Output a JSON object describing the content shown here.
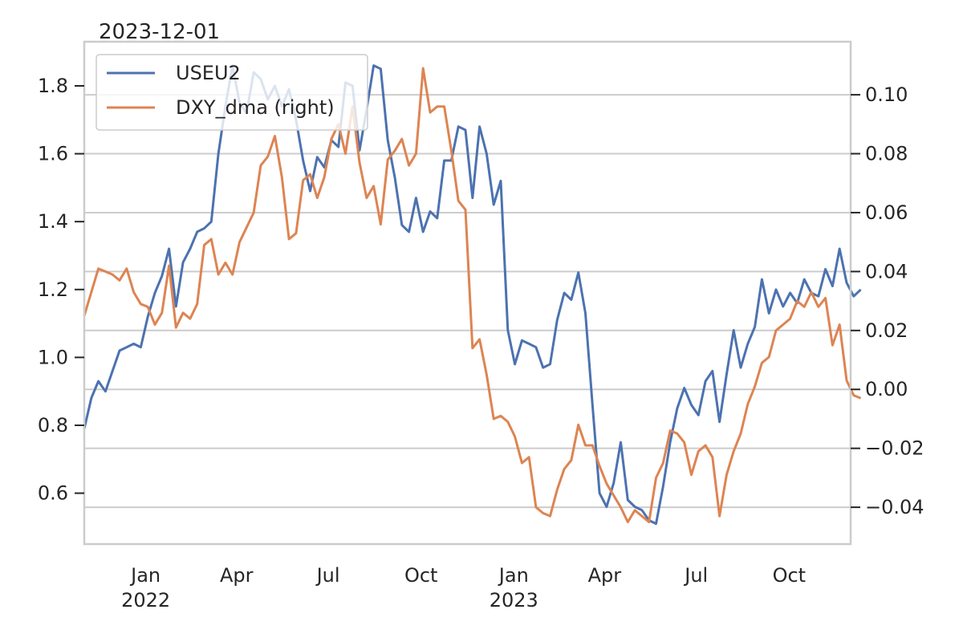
{
  "chart_data": {
    "type": "line",
    "title": "2023-12-01",
    "x_ticks": [
      {
        "date": "2022-01-01",
        "label": "Jan",
        "sublabel": "2022"
      },
      {
        "date": "2022-04-01",
        "label": "Apr",
        "sublabel": ""
      },
      {
        "date": "2022-07-01",
        "label": "Jul",
        "sublabel": ""
      },
      {
        "date": "2022-10-01",
        "label": "Oct",
        "sublabel": ""
      },
      {
        "date": "2023-01-01",
        "label": "Jan",
        "sublabel": "2023"
      },
      {
        "date": "2023-04-01",
        "label": "Apr",
        "sublabel": ""
      },
      {
        "date": "2023-07-01",
        "label": "Jul",
        "sublabel": ""
      },
      {
        "date": "2023-10-01",
        "label": "Oct",
        "sublabel": ""
      }
    ],
    "xlim": [
      "2021-11-01",
      "2023-12-01"
    ],
    "ylim_left": [
      0.45,
      1.93
    ],
    "ylim_right": [
      -0.0525,
      0.118
    ],
    "left_ticks": [
      {
        "value": 0.6,
        "label": "0.6"
      },
      {
        "value": 0.8,
        "label": "0.8"
      },
      {
        "value": 1.0,
        "label": "1.0"
      },
      {
        "value": 1.2,
        "label": "1.2"
      },
      {
        "value": 1.4,
        "label": "1.4"
      },
      {
        "value": 1.6,
        "label": "1.6"
      },
      {
        "value": 1.8,
        "label": "1.8"
      }
    ],
    "right_ticks": [
      {
        "value": -0.04,
        "label": "−0.04"
      },
      {
        "value": -0.02,
        "label": "−0.02"
      },
      {
        "value": 0.0,
        "label": "0.00"
      },
      {
        "value": 0.02,
        "label": "0.02"
      },
      {
        "value": 0.04,
        "label": "0.04"
      },
      {
        "value": 0.06,
        "label": "0.06"
      },
      {
        "value": 0.08,
        "label": "0.08"
      },
      {
        "value": 0.1,
        "label": "0.10"
      }
    ],
    "grid": "horizontal (right axis)",
    "legend_position": "top-left",
    "series": [
      {
        "name": "USEU2",
        "axis": "left",
        "color": "#4c72b0",
        "points": [
          [
            "2021-11-01",
            0.79
          ],
          [
            "2021-11-08",
            0.88
          ],
          [
            "2021-11-15",
            0.93
          ],
          [
            "2021-11-22",
            0.9
          ],
          [
            "2021-11-29",
            0.96
          ],
          [
            "2021-12-06",
            1.02
          ],
          [
            "2021-12-13",
            1.03
          ],
          [
            "2021-12-20",
            1.04
          ],
          [
            "2021-12-27",
            1.03
          ],
          [
            "2022-01-03",
            1.12
          ],
          [
            "2022-01-10",
            1.19
          ],
          [
            "2022-01-17",
            1.24
          ],
          [
            "2022-01-24",
            1.32
          ],
          [
            "2022-01-31",
            1.15
          ],
          [
            "2022-02-07",
            1.28
          ],
          [
            "2022-02-14",
            1.32
          ],
          [
            "2022-02-21",
            1.37
          ],
          [
            "2022-02-28",
            1.38
          ],
          [
            "2022-03-07",
            1.4
          ],
          [
            "2022-03-14",
            1.6
          ],
          [
            "2022-03-21",
            1.74
          ],
          [
            "2022-03-28",
            1.86
          ],
          [
            "2022-04-04",
            1.75
          ],
          [
            "2022-04-11",
            1.72
          ],
          [
            "2022-04-18",
            1.84
          ],
          [
            "2022-04-25",
            1.82
          ],
          [
            "2022-05-02",
            1.76
          ],
          [
            "2022-05-09",
            1.8
          ],
          [
            "2022-05-16",
            1.74
          ],
          [
            "2022-05-23",
            1.79
          ],
          [
            "2022-05-30",
            1.7
          ],
          [
            "2022-06-06",
            1.58
          ],
          [
            "2022-06-13",
            1.49
          ],
          [
            "2022-06-20",
            1.59
          ],
          [
            "2022-06-27",
            1.56
          ],
          [
            "2022-07-04",
            1.64
          ],
          [
            "2022-07-11",
            1.62
          ],
          [
            "2022-07-18",
            1.81
          ],
          [
            "2022-07-25",
            1.8
          ],
          [
            "2022-08-01",
            1.61
          ],
          [
            "2022-08-08",
            1.73
          ],
          [
            "2022-08-15",
            1.86
          ],
          [
            "2022-08-22",
            1.85
          ],
          [
            "2022-08-29",
            1.64
          ],
          [
            "2022-09-05",
            1.53
          ],
          [
            "2022-09-12",
            1.39
          ],
          [
            "2022-09-19",
            1.37
          ],
          [
            "2022-09-26",
            1.47
          ],
          [
            "2022-10-03",
            1.37
          ],
          [
            "2022-10-10",
            1.43
          ],
          [
            "2022-10-17",
            1.41
          ],
          [
            "2022-10-24",
            1.58
          ],
          [
            "2022-10-31",
            1.58
          ],
          [
            "2022-11-07",
            1.68
          ],
          [
            "2022-11-14",
            1.67
          ],
          [
            "2022-11-21",
            1.47
          ],
          [
            "2022-11-28",
            1.68
          ],
          [
            "2022-12-05",
            1.6
          ],
          [
            "2022-12-12",
            1.45
          ],
          [
            "2022-12-19",
            1.52
          ],
          [
            "2022-12-26",
            1.08
          ],
          [
            "2023-01-02",
            0.98
          ],
          [
            "2023-01-09",
            1.05
          ],
          [
            "2023-01-16",
            1.04
          ],
          [
            "2023-01-23",
            1.03
          ],
          [
            "2023-01-30",
            0.97
          ],
          [
            "2023-02-06",
            0.98
          ],
          [
            "2023-02-13",
            1.11
          ],
          [
            "2023-02-20",
            1.19
          ],
          [
            "2023-02-27",
            1.17
          ],
          [
            "2023-03-06",
            1.25
          ],
          [
            "2023-03-13",
            1.13
          ],
          [
            "2023-03-20",
            0.86
          ],
          [
            "2023-03-27",
            0.6
          ],
          [
            "2023-04-03",
            0.56
          ],
          [
            "2023-04-10",
            0.63
          ],
          [
            "2023-04-17",
            0.75
          ],
          [
            "2023-04-24",
            0.58
          ],
          [
            "2023-05-01",
            0.56
          ],
          [
            "2023-05-08",
            0.55
          ],
          [
            "2023-05-15",
            0.52
          ],
          [
            "2023-05-22",
            0.51
          ],
          [
            "2023-05-29",
            0.62
          ],
          [
            "2023-06-05",
            0.75
          ],
          [
            "2023-06-12",
            0.85
          ],
          [
            "2023-06-19",
            0.91
          ],
          [
            "2023-06-26",
            0.86
          ],
          [
            "2023-07-03",
            0.83
          ],
          [
            "2023-07-10",
            0.93
          ],
          [
            "2023-07-17",
            0.96
          ],
          [
            "2023-07-24",
            0.81
          ],
          [
            "2023-07-31",
            0.95
          ],
          [
            "2023-08-07",
            1.08
          ],
          [
            "2023-08-14",
            0.97
          ],
          [
            "2023-08-21",
            1.04
          ],
          [
            "2023-08-28",
            1.09
          ],
          [
            "2023-09-04",
            1.23
          ],
          [
            "2023-09-11",
            1.13
          ],
          [
            "2023-09-18",
            1.2
          ],
          [
            "2023-09-25",
            1.15
          ],
          [
            "2023-10-02",
            1.19
          ],
          [
            "2023-10-09",
            1.16
          ],
          [
            "2023-10-16",
            1.23
          ],
          [
            "2023-10-23",
            1.19
          ],
          [
            "2023-10-30",
            1.18
          ],
          [
            "2023-11-06",
            1.26
          ],
          [
            "2023-11-13",
            1.21
          ],
          [
            "2023-11-20",
            1.32
          ],
          [
            "2023-11-27",
            1.22
          ],
          [
            "2023-12-04",
            1.18
          ],
          [
            "2023-12-11",
            1.2
          ]
        ]
      },
      {
        "name": "DXY_dma (right)",
        "axis": "right",
        "color": "#dd8452",
        "points": [
          [
            "2021-11-01",
            0.025
          ],
          [
            "2021-11-08",
            0.033
          ],
          [
            "2021-11-15",
            0.041
          ],
          [
            "2021-11-22",
            0.04
          ],
          [
            "2021-11-29",
            0.039
          ],
          [
            "2021-12-06",
            0.037
          ],
          [
            "2021-12-13",
            0.041
          ],
          [
            "2021-12-20",
            0.033
          ],
          [
            "2021-12-27",
            0.029
          ],
          [
            "2022-01-03",
            0.028
          ],
          [
            "2022-01-10",
            0.022
          ],
          [
            "2022-01-17",
            0.026
          ],
          [
            "2022-01-24",
            0.042
          ],
          [
            "2022-01-31",
            0.021
          ],
          [
            "2022-02-07",
            0.026
          ],
          [
            "2022-02-14",
            0.024
          ],
          [
            "2022-02-21",
            0.029
          ],
          [
            "2022-02-28",
            0.049
          ],
          [
            "2022-03-07",
            0.051
          ],
          [
            "2022-03-14",
            0.039
          ],
          [
            "2022-03-21",
            0.043
          ],
          [
            "2022-03-28",
            0.039
          ],
          [
            "2022-04-04",
            0.05
          ],
          [
            "2022-04-11",
            0.055
          ],
          [
            "2022-04-18",
            0.06
          ],
          [
            "2022-04-25",
            0.076
          ],
          [
            "2022-05-02",
            0.079
          ],
          [
            "2022-05-09",
            0.086
          ],
          [
            "2022-05-16",
            0.072
          ],
          [
            "2022-05-23",
            0.051
          ],
          [
            "2022-05-30",
            0.053
          ],
          [
            "2022-06-06",
            0.071
          ],
          [
            "2022-06-13",
            0.073
          ],
          [
            "2022-06-20",
            0.065
          ],
          [
            "2022-06-27",
            0.072
          ],
          [
            "2022-07-04",
            0.085
          ],
          [
            "2022-07-11",
            0.09
          ],
          [
            "2022-07-18",
            0.08
          ],
          [
            "2022-07-25",
            0.096
          ],
          [
            "2022-08-01",
            0.077
          ],
          [
            "2022-08-08",
            0.065
          ],
          [
            "2022-08-15",
            0.069
          ],
          [
            "2022-08-22",
            0.056
          ],
          [
            "2022-08-29",
            0.078
          ],
          [
            "2022-09-05",
            0.081
          ],
          [
            "2022-09-12",
            0.085
          ],
          [
            "2022-09-19",
            0.076
          ],
          [
            "2022-09-26",
            0.08
          ],
          [
            "2022-10-03",
            0.109
          ],
          [
            "2022-10-10",
            0.094
          ],
          [
            "2022-10-17",
            0.096
          ],
          [
            "2022-10-24",
            0.096
          ],
          [
            "2022-10-31",
            0.081
          ],
          [
            "2022-11-07",
            0.064
          ],
          [
            "2022-11-14",
            0.061
          ],
          [
            "2022-11-21",
            0.014
          ],
          [
            "2022-11-28",
            0.017
          ],
          [
            "2022-12-05",
            0.005
          ],
          [
            "2022-12-12",
            -0.01
          ],
          [
            "2022-12-19",
            -0.009
          ],
          [
            "2022-12-26",
            -0.011
          ],
          [
            "2023-01-02",
            -0.016
          ],
          [
            "2023-01-09",
            -0.025
          ],
          [
            "2023-01-16",
            -0.023
          ],
          [
            "2023-01-23",
            -0.04
          ],
          [
            "2023-01-30",
            -0.042
          ],
          [
            "2023-02-06",
            -0.043
          ],
          [
            "2023-02-13",
            -0.034
          ],
          [
            "2023-02-20",
            -0.027
          ],
          [
            "2023-02-27",
            -0.024
          ],
          [
            "2023-03-06",
            -0.012
          ],
          [
            "2023-03-13",
            -0.019
          ],
          [
            "2023-03-20",
            -0.019
          ],
          [
            "2023-03-27",
            -0.026
          ],
          [
            "2023-04-03",
            -0.032
          ],
          [
            "2023-04-10",
            -0.036
          ],
          [
            "2023-04-17",
            -0.04
          ],
          [
            "2023-04-24",
            -0.045
          ],
          [
            "2023-05-01",
            -0.041
          ],
          [
            "2023-05-08",
            -0.043
          ],
          [
            "2023-05-15",
            -0.045
          ],
          [
            "2023-05-22",
            -0.03
          ],
          [
            "2023-05-29",
            -0.025
          ],
          [
            "2023-06-05",
            -0.014
          ],
          [
            "2023-06-12",
            -0.015
          ],
          [
            "2023-06-19",
            -0.018
          ],
          [
            "2023-06-26",
            -0.029
          ],
          [
            "2023-07-03",
            -0.021
          ],
          [
            "2023-07-10",
            -0.019
          ],
          [
            "2023-07-17",
            -0.023
          ],
          [
            "2023-07-24",
            -0.043
          ],
          [
            "2023-07-31",
            -0.029
          ],
          [
            "2023-08-07",
            -0.021
          ],
          [
            "2023-08-14",
            -0.015
          ],
          [
            "2023-08-21",
            -0.005
          ],
          [
            "2023-08-28",
            0.001
          ],
          [
            "2023-09-04",
            0.009
          ],
          [
            "2023-09-11",
            0.011
          ],
          [
            "2023-09-18",
            0.02
          ],
          [
            "2023-09-25",
            0.022
          ],
          [
            "2023-10-02",
            0.024
          ],
          [
            "2023-10-09",
            0.03
          ],
          [
            "2023-10-16",
            0.028
          ],
          [
            "2023-10-23",
            0.033
          ],
          [
            "2023-10-30",
            0.028
          ],
          [
            "2023-11-06",
            0.031
          ],
          [
            "2023-11-13",
            0.015
          ],
          [
            "2023-11-20",
            0.022
          ],
          [
            "2023-11-27",
            0.003
          ],
          [
            "2023-12-04",
            -0.002
          ],
          [
            "2023-12-11",
            -0.003
          ]
        ]
      }
    ]
  }
}
